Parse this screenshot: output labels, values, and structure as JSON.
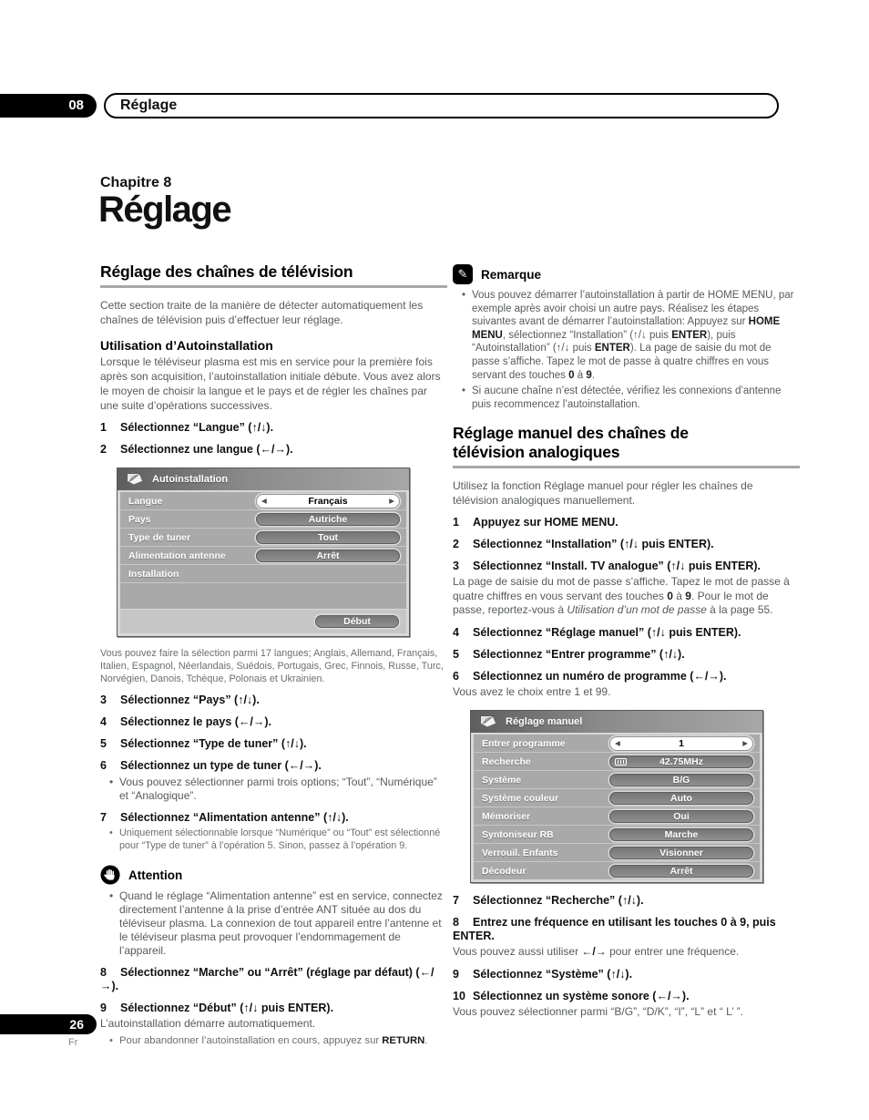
{
  "header": {
    "chapter_num": "08",
    "chapter_tab_title": "Réglage",
    "chapter_label": "Chapitre 8",
    "title": "Réglage"
  },
  "footer": {
    "page_number": "26",
    "language": "Fr"
  },
  "colors": {
    "menu_body": "#a9a9a9",
    "menu_pill": "#7f7f7f",
    "tab_black": "#000000",
    "rule_gray": "#a6a8ab"
  },
  "left": {
    "section_title": "Réglage des chaînes de télévision",
    "intro": "Cette section traite de la manière de détecter automatiquement les chaînes de télévision puis d’effectuer leur réglage.",
    "sub_title": "Utilisation d’Autoinstallation",
    "sub_intro": "Lorsque le téléviseur plasma est mis en service pour la première fois après son acquisition, l’autoinstallation initiale débute. Vous avez alors le moyen de choisir la langue et le pays et de régler les chaînes par une suite d’opérations successives.",
    "steps_a": [
      {
        "num": "1",
        "text": "Sélectionnez “Langue” (↑/↓)."
      },
      {
        "num": "2",
        "text": "Sélectionnez une langue (←/→)."
      }
    ],
    "langs_note": "Vous pouvez faire la sélection parmi 17 langues; Anglais, Allemand, Français, Italien, Espagnol, Néerlandais, Suédois, Portugais, Grec, Finnois, Russe, Turc, Norvégien, Danois, Tchèque, Polonais et Ukrainien.",
    "steps_b": [
      {
        "num": "3",
        "text": "Sélectionnez “Pays” (↑/↓)."
      },
      {
        "num": "4",
        "text": "Sélectionnez le pays (←/→)."
      },
      {
        "num": "5",
        "text": "Sélectionnez “Type de tuner” (↑/↓)."
      },
      {
        "num": "6",
        "text": "Sélectionnez un type de tuner (←/→).",
        "bullet": "Vous pouvez sélectionner parmi trois options; “Tout”, “Numérique” et “Analogique”."
      },
      {
        "num": "7",
        "text": "Sélectionnez “Alimentation antenne” (↑/↓).",
        "bullet_small": "Uniquement sélectionnable lorsque “Numérique” ou “Tout” est sélectionné pour “Type de tuner” à l’opération 5. Sinon, passez à l’opération 9."
      }
    ],
    "attention": {
      "title": "Attention",
      "bullet": "Quand le réglage “Alimentation antenne” est en service, connectez directement l’antenne à la prise d’entrée ANT située au dos du téléviseur plasma. La connexion de tout appareil entre l’antenne et le téléviseur plasma peut provoquer l’endommagement de l’appareil."
    },
    "steps_c": [
      {
        "num": "8",
        "text": "Sélectionnez “Marche” ou “Arrêt” (réglage par défaut) (←/→)."
      },
      {
        "num": "9",
        "text": "Sélectionnez “Début” (↑/↓ puis ENTER).",
        "after": "L’autoinstallation démarre automatiquement.",
        "bullet": "Pour abandonner l’autoinstallation en cours, appuyez sur **RETURN**."
      }
    ]
  },
  "menu_auto": {
    "title": "Autoinstallation",
    "rows": [
      {
        "label": "Langue",
        "value": "Français"
      },
      {
        "label": "Pays",
        "value": "Autriche"
      },
      {
        "label": "Type de tuner",
        "value": "Tout"
      },
      {
        "label": "Alimentation antenne",
        "value": "Arrêt"
      },
      {
        "label": "Installation",
        "value": ""
      }
    ],
    "start_label": "Début"
  },
  "menu_manual": {
    "title": "Réglage manuel",
    "rows": [
      {
        "label": "Entrer programme",
        "value": "1"
      },
      {
        "label": "Recherche",
        "value": "42.75MHz"
      },
      {
        "label": "Système",
        "value": "B/G"
      },
      {
        "label": "Système couleur",
        "value": "Auto"
      },
      {
        "label": "Mémoriser",
        "value": "Oui"
      },
      {
        "label": "Syntoniseur RB",
        "value": "Marche"
      },
      {
        "label": "Verrouil. Enfants",
        "value": "Visionner"
      },
      {
        "label": "Décodeur",
        "value": "Arrêt"
      }
    ]
  },
  "right": {
    "note_title": "Remarque",
    "note_bullets": [
      "Vous pouvez démarrer l’autoinstallation à partir de HOME MENU, par exemple après avoir choisi un autre pays. Réalisez les étapes suivantes avant de démarrer l’autoinstallation: Appuyez sur **HOME MENU**, sélectionnez “Installation” (↑/↓ puis **ENTER**), puis “Autoinstallation” (↑/↓ puis **ENTER**). La page de saisie du mot de passe s’affiche. Tapez le mot de passe à quatre chiffres en vous servant des touches **0** à **9**.",
      "Si aucune chaîne n’est détectée, vérifiez les connexions d’antenne puis recommencez l’autoinstallation."
    ],
    "section_title_line1": "Réglage manuel des chaînes de",
    "section_title_line2": "télévision analogiques",
    "intro": "Utilisez la fonction Réglage manuel pour régler les chaînes de télévision analogiques manuellement.",
    "steps_a": [
      {
        "num": "1",
        "text": "Appuyez sur HOME MENU."
      },
      {
        "num": "2",
        "text": "Sélectionnez “Installation” (↑/↓ puis ENTER)."
      },
      {
        "num": "3",
        "text": "Sélectionnez “Install. TV analogue” (↑/↓ puis ENTER).",
        "after": "La page de saisie du mot de passe s’affiche. Tapez le mot de passe à quatre chiffres en vous servant des touches **0** à **9**. Pour le mot de passe, reportez-vous à *Utilisation d’un mot de passe* à la page 55."
      },
      {
        "num": "4",
        "text": "Sélectionnez “Réglage manuel” (↑/↓ puis ENTER)."
      },
      {
        "num": "5",
        "text": "Sélectionnez “Entrer programme” (↑/↓)."
      },
      {
        "num": "6",
        "text": "Sélectionnez un numéro de programme (←/→).",
        "after": "Vous avez le choix entre 1 et 99."
      }
    ],
    "steps_b": [
      {
        "num": "7",
        "text": "Sélectionnez “Recherche” (↑/↓)."
      },
      {
        "num": "8",
        "text": "Entrez une fréquence en utilisant les touches 0 à 9, puis ENTER.",
        "after": "Vous pouvez aussi utiliser **←/→** pour entrer une fréquence."
      },
      {
        "num": "9",
        "text": "Sélectionnez “Système” (↑/↓)."
      },
      {
        "num": "10",
        "text": "Sélectionnez un système sonore (←/→).",
        "after": "Vous pouvez sélectionner parmi “B/G”, “D/K”, “I”, “L” et “ L’ ”."
      }
    ]
  }
}
